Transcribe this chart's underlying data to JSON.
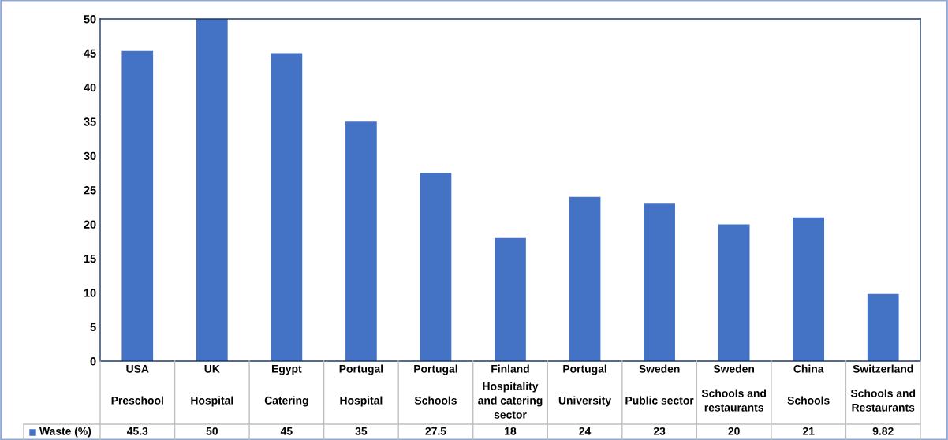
{
  "chart_data": {
    "type": "bar",
    "categories": [
      "USA\nPreschool",
      "UK\nHospital",
      "Egypt\nCatering",
      "Portugal\nHospital",
      "Portugal\nSchools",
      "Finland\nHospitality\nand catering\nsector",
      "Portugal\nUniversity",
      "Sweden\nPublic sector",
      "Sweden\nSchools and\nrestaurants",
      "China\nSchools",
      "Switzerland\nSchools and\nRestaurants"
    ],
    "series": [
      {
        "name": "Waste (%)",
        "color": "#4472c4",
        "values": [
          45.3,
          50,
          45,
          35,
          27.5,
          18,
          24,
          23,
          20,
          21,
          9.82
        ]
      }
    ],
    "value_labels": [
      "45.3",
      "50",
      "45",
      "35",
      "27.5",
      "18",
      "24",
      "23",
      "20",
      "21",
      "9.82"
    ],
    "data_labels": true,
    "ylim": [
      0,
      50
    ],
    "yticks": [
      0,
      5,
      10,
      15,
      20,
      25,
      30,
      35,
      40,
      45,
      50
    ],
    "grid": false,
    "legend": "bottom left"
  }
}
